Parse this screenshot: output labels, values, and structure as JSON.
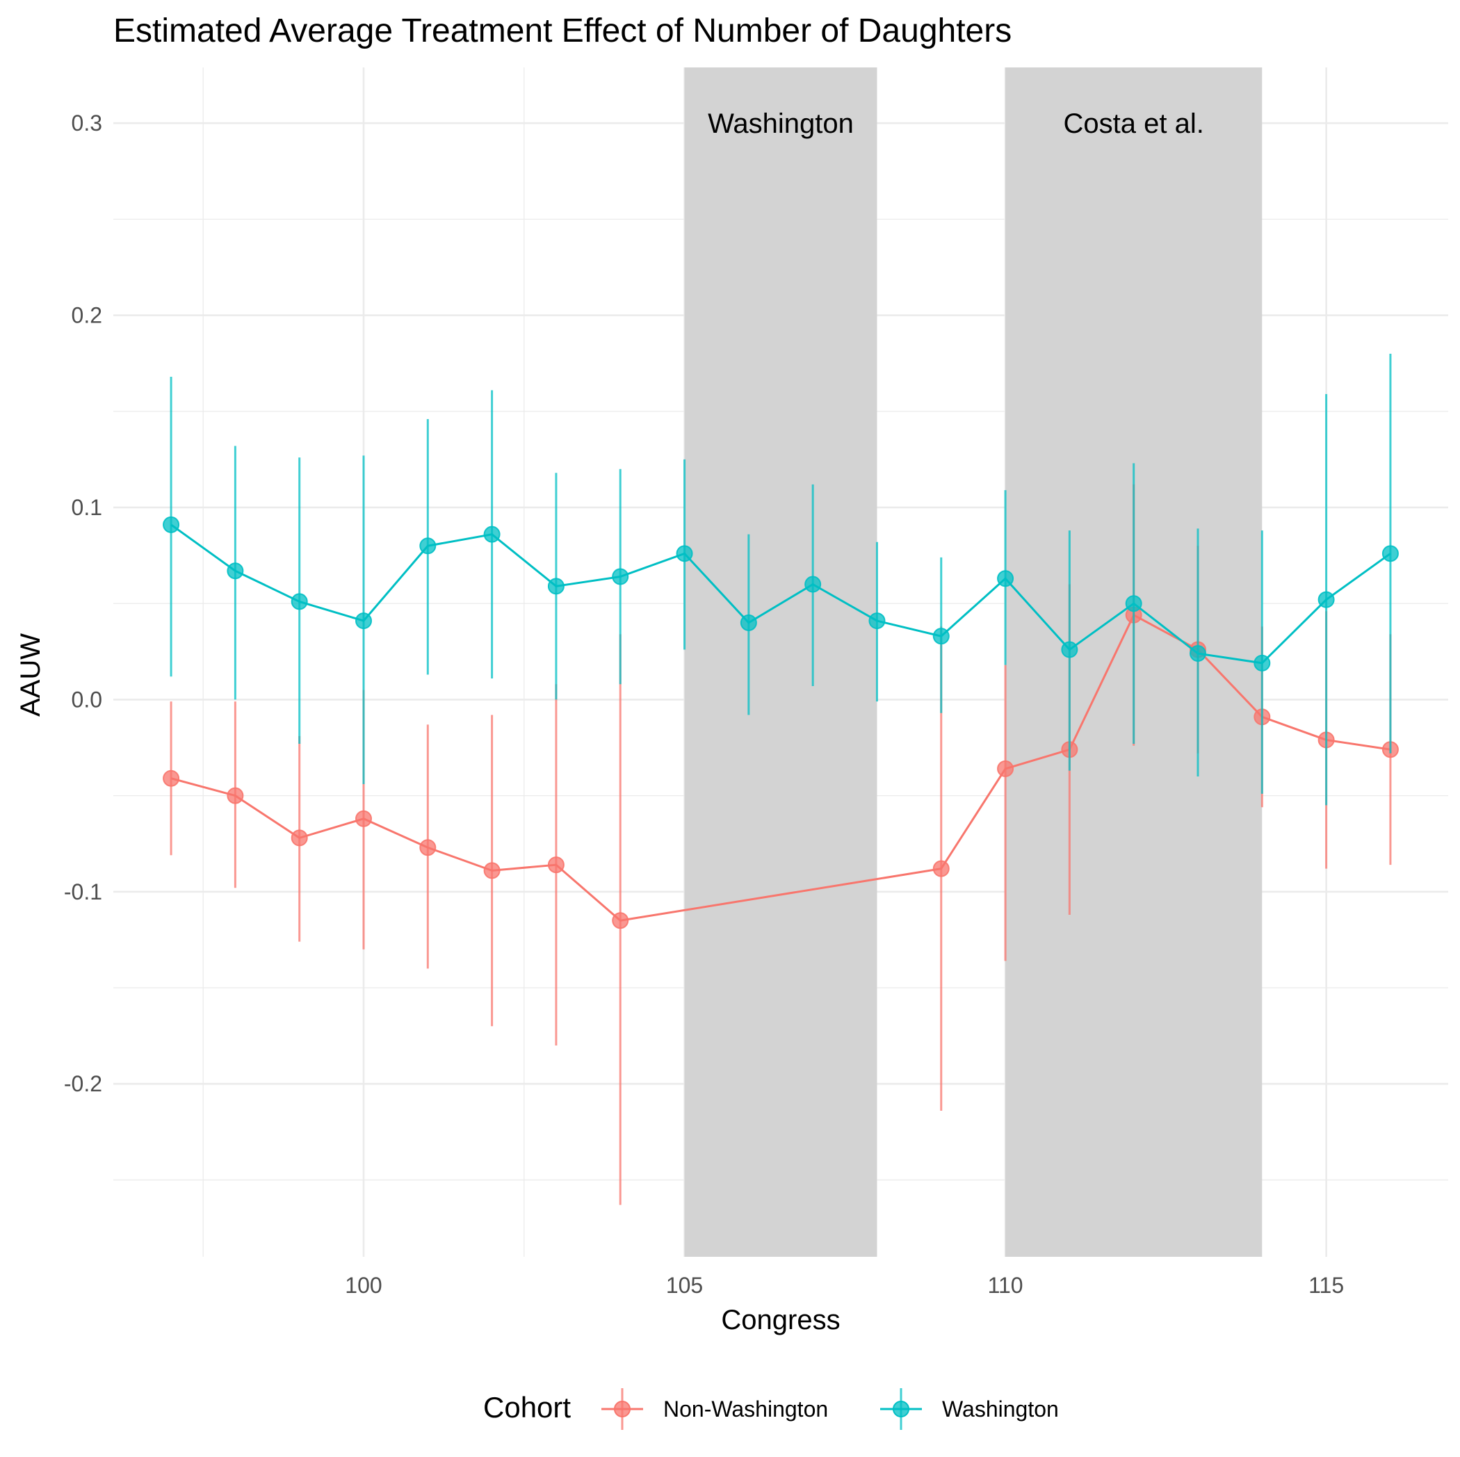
{
  "chart_data": {
    "type": "line",
    "title": "Estimated Average Treatment Effect of Number of Daughters",
    "xlabel": "Congress",
    "ylabel": "AAUW",
    "xlim": [
      96.1,
      116.9
    ],
    "ylim": [
      -0.29,
      0.329
    ],
    "x_ticks": [
      100,
      105,
      110,
      115
    ],
    "x_tick_labels": [
      "100",
      "105",
      "110",
      "115"
    ],
    "y_ticks": [
      -0.2,
      -0.1,
      0.0,
      0.1,
      0.2,
      0.3
    ],
    "y_tick_labels": [
      "-0.2",
      "-0.1",
      "0.0",
      "0.1",
      "0.2",
      "0.3"
    ],
    "grid": true,
    "legend": {
      "title": "Cohort",
      "position": "bottom"
    },
    "shaded_regions": [
      {
        "label": "Washington",
        "x_start": 105,
        "x_end": 108,
        "color": "#d3d3d3"
      },
      {
        "label": "Costa et al.",
        "x_start": 110,
        "x_end": 114,
        "color": "#d3d3d3"
      }
    ],
    "series": [
      {
        "name": "Non-Washington",
        "color": "#F8766D",
        "x": [
          97,
          98,
          99,
          100,
          101,
          102,
          103,
          104,
          109,
          110,
          111,
          112,
          113,
          114,
          115,
          116
        ],
        "y": [
          -0.041,
          -0.05,
          -0.072,
          -0.062,
          -0.077,
          -0.089,
          -0.086,
          -0.115,
          -0.088,
          -0.036,
          -0.026,
          0.044,
          0.026,
          -0.009,
          -0.021,
          -0.026
        ],
        "lower": [
          -0.081,
          -0.098,
          -0.126,
          -0.13,
          -0.14,
          -0.17,
          -0.18,
          -0.263,
          -0.214,
          -0.136,
          -0.112,
          -0.024,
          -0.028,
          -0.056,
          -0.088,
          -0.086
        ],
        "upper": [
          -0.001,
          -0.001,
          -0.019,
          0.005,
          -0.013,
          -0.008,
          0.008,
          0.034,
          0.038,
          0.018,
          0.06,
          0.112,
          0.08,
          0.038,
          0.046,
          0.034
        ]
      },
      {
        "name": "Washington",
        "color": "#00BFC4",
        "x": [
          97,
          98,
          99,
          100,
          101,
          102,
          103,
          104,
          105,
          106,
          107,
          108,
          109,
          110,
          111,
          112,
          113,
          114,
          115,
          116
        ],
        "y": [
          0.091,
          0.067,
          0.051,
          0.041,
          0.08,
          0.086,
          0.059,
          0.064,
          0.076,
          0.04,
          0.06,
          0.041,
          0.033,
          0.063,
          0.026,
          0.05,
          0.024,
          0.019,
          0.052,
          0.076
        ],
        "lower": [
          0.012,
          0.0,
          -0.023,
          -0.044,
          0.013,
          0.011,
          0.0,
          0.008,
          0.026,
          -0.008,
          0.007,
          -0.001,
          -0.007,
          0.018,
          -0.037,
          -0.023,
          -0.04,
          -0.049,
          -0.055,
          -0.028
        ],
        "upper": [
          0.168,
          0.132,
          0.126,
          0.127,
          0.146,
          0.161,
          0.118,
          0.12,
          0.125,
          0.086,
          0.112,
          0.082,
          0.074,
          0.109,
          0.088,
          0.123,
          0.089,
          0.088,
          0.159,
          0.18
        ]
      }
    ]
  }
}
